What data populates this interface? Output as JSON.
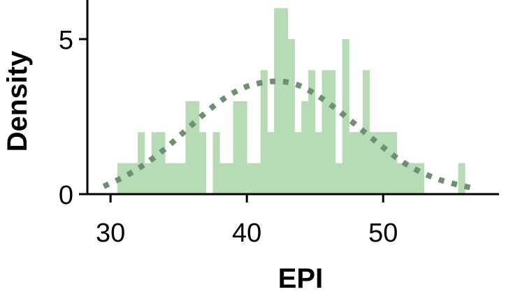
{
  "chart_data": {
    "type": "histogram",
    "xlabel": "EPI",
    "ylabel": "Density",
    "xlim": [
      28.3,
      58.5
    ],
    "ylim": [
      0,
      6.4
    ],
    "x_ticks": [
      30,
      40,
      50
    ],
    "x_tick_labels": [
      "30",
      "40",
      "50"
    ],
    "y_ticks": [
      0,
      5
    ],
    "y_tick_labels": [
      "0",
      "5"
    ],
    "bin_width": 0.5,
    "bins": [
      {
        "x": 30.75,
        "y": 1
      },
      {
        "x": 31.25,
        "y": 1
      },
      {
        "x": 31.75,
        "y": 1
      },
      {
        "x": 32.25,
        "y": 2
      },
      {
        "x": 32.75,
        "y": 1
      },
      {
        "x": 33.25,
        "y": 2
      },
      {
        "x": 33.75,
        "y": 2
      },
      {
        "x": 34.25,
        "y": 1
      },
      {
        "x": 34.75,
        "y": 1
      },
      {
        "x": 35.25,
        "y": 1
      },
      {
        "x": 35.75,
        "y": 3
      },
      {
        "x": 36.25,
        "y": 3
      },
      {
        "x": 36.75,
        "y": 2
      },
      {
        "x": 37.25,
        "y": 0
      },
      {
        "x": 37.75,
        "y": 2
      },
      {
        "x": 38.25,
        "y": 1
      },
      {
        "x": 38.75,
        "y": 1
      },
      {
        "x": 39.25,
        "y": 3
      },
      {
        "x": 39.75,
        "y": 3
      },
      {
        "x": 40.25,
        "y": 1
      },
      {
        "x": 40.75,
        "y": 1
      },
      {
        "x": 41.25,
        "y": 4
      },
      {
        "x": 41.75,
        "y": 2
      },
      {
        "x": 42.25,
        "y": 6
      },
      {
        "x": 42.75,
        "y": 6
      },
      {
        "x": 43.25,
        "y": 5
      },
      {
        "x": 43.75,
        "y": 2
      },
      {
        "x": 44.25,
        "y": 3
      },
      {
        "x": 44.75,
        "y": 4
      },
      {
        "x": 45.25,
        "y": 2
      },
      {
        "x": 45.75,
        "y": 4
      },
      {
        "x": 46.25,
        "y": 4
      },
      {
        "x": 46.75,
        "y": 1
      },
      {
        "x": 47.25,
        "y": 5
      },
      {
        "x": 47.75,
        "y": 2
      },
      {
        "x": 48.25,
        "y": 2
      },
      {
        "x": 48.75,
        "y": 4
      },
      {
        "x": 49.25,
        "y": 2
      },
      {
        "x": 49.75,
        "y": 2
      },
      {
        "x": 50.25,
        "y": 2
      },
      {
        "x": 50.75,
        "y": 2
      },
      {
        "x": 51.25,
        "y": 1
      },
      {
        "x": 51.75,
        "y": 1
      },
      {
        "x": 52.25,
        "y": 1
      },
      {
        "x": 52.75,
        "y": 1
      },
      {
        "x": 55.75,
        "y": 1
      }
    ],
    "density_curve": {
      "style": "dotted",
      "x": [
        29.5,
        31,
        32.5,
        34,
        35.5,
        37,
        38.5,
        40,
        41.5,
        42.7,
        44,
        45.5,
        47,
        48.5,
        50,
        51.5,
        53,
        54.5,
        56.5
      ],
      "y": [
        0.25,
        0.55,
        0.95,
        1.45,
        2.05,
        2.65,
        3.15,
        3.5,
        3.63,
        3.65,
        3.5,
        3.1,
        2.6,
        2.05,
        1.5,
        1.0,
        0.65,
        0.4,
        0.2
      ]
    },
    "colors": {
      "bars": "#b7dcb5",
      "curve": "#6f8f72",
      "axis": "#000000"
    },
    "grid": false,
    "legend": "none"
  }
}
